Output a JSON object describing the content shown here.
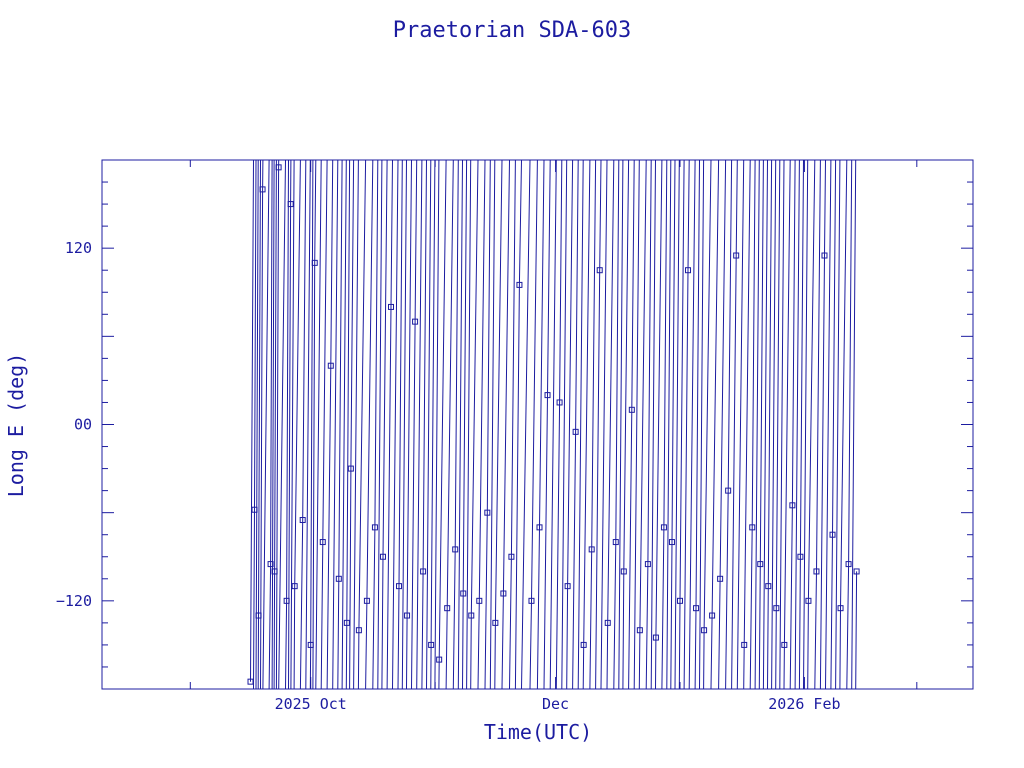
{
  "chart_data": {
    "type": "scatter",
    "title": "Praetorian SDA-603",
    "xlabel": "Time(UTC)",
    "ylabel": "Long E (deg)",
    "xlim": [
      "2025-08-10",
      "2026-03-15"
    ],
    "ylim": [
      -180,
      180
    ],
    "x_ticks": [
      {
        "date": "2025-10-01",
        "label": "2025 Oct"
      },
      {
        "date": "2025-12-01",
        "label": "Dec"
      },
      {
        "date": "2026-02-01",
        "label": "2026 Feb"
      }
    ],
    "y_ticks": [
      {
        "value": 120,
        "label": "120"
      },
      {
        "value": 0,
        "label": "00"
      },
      {
        "value": -120,
        "label": "−120"
      }
    ],
    "grid": false,
    "marker": "open-square",
    "connected": true,
    "series_color": "#1c1ca0",
    "series": [
      {
        "x": [
          "2025-09-16",
          "2025-09-17",
          "2025-09-18",
          "2025-09-19",
          "2025-09-21",
          "2025-09-22",
          "2025-09-23",
          "2025-09-25",
          "2025-09-26",
          "2025-09-27",
          "2025-09-29",
          "2025-10-01",
          "2025-10-02",
          "2025-10-04",
          "2025-10-06",
          "2025-10-08",
          "2025-10-10",
          "2025-10-11",
          "2025-10-13",
          "2025-10-15",
          "2025-10-17",
          "2025-10-19",
          "2025-10-21",
          "2025-10-23",
          "2025-10-25",
          "2025-10-27",
          "2025-10-29",
          "2025-10-31",
          "2025-11-02",
          "2025-11-04",
          "2025-11-06",
          "2025-11-08",
          "2025-11-10",
          "2025-11-12",
          "2025-11-14",
          "2025-11-16",
          "2025-11-18",
          "2025-11-20",
          "2025-11-22",
          "2025-11-25",
          "2025-11-27",
          "2025-11-29",
          "2025-12-02",
          "2025-12-04",
          "2025-12-06",
          "2025-12-08",
          "2025-12-10",
          "2025-12-12",
          "2025-12-14",
          "2025-12-16",
          "2025-12-18",
          "2025-12-20",
          "2025-12-22",
          "2025-12-24",
          "2025-12-26",
          "2025-12-28",
          "2025-12-30",
          "2026-01-01",
          "2026-01-03",
          "2026-01-05",
          "2026-01-07",
          "2026-01-09",
          "2026-01-11",
          "2026-01-13",
          "2026-01-15",
          "2026-01-17",
          "2026-01-19",
          "2026-01-21",
          "2026-01-23",
          "2026-01-25",
          "2026-01-27",
          "2026-01-29",
          "2026-01-31",
          "2026-02-02",
          "2026-02-04",
          "2026-02-06",
          "2026-02-08",
          "2026-02-10",
          "2026-02-12",
          "2026-02-14"
        ],
        "y": [
          -175,
          -58,
          -130,
          160,
          -95,
          -100,
          175,
          -120,
          150,
          -110,
          -65,
          -150,
          110,
          -80,
          40,
          -105,
          -135,
          -30,
          -140,
          -120,
          -70,
          -90,
          80,
          -110,
          -130,
          70,
          -100,
          -150,
          -160,
          -125,
          -85,
          -115,
          -130,
          -120,
          -60,
          -135,
          -115,
          -90,
          95,
          -120,
          -70,
          20,
          15,
          -110,
          -5,
          -150,
          -85,
          105,
          -135,
          -80,
          -100,
          10,
          -140,
          -95,
          -145,
          -70,
          -80,
          -120,
          105,
          -125,
          -140,
          -130,
          -105,
          -45,
          115,
          -150,
          -70,
          -95,
          -110,
          -125,
          -150,
          -55,
          -90,
          -120,
          -100,
          115,
          -75,
          -125,
          -95,
          -100
        ]
      }
    ]
  }
}
